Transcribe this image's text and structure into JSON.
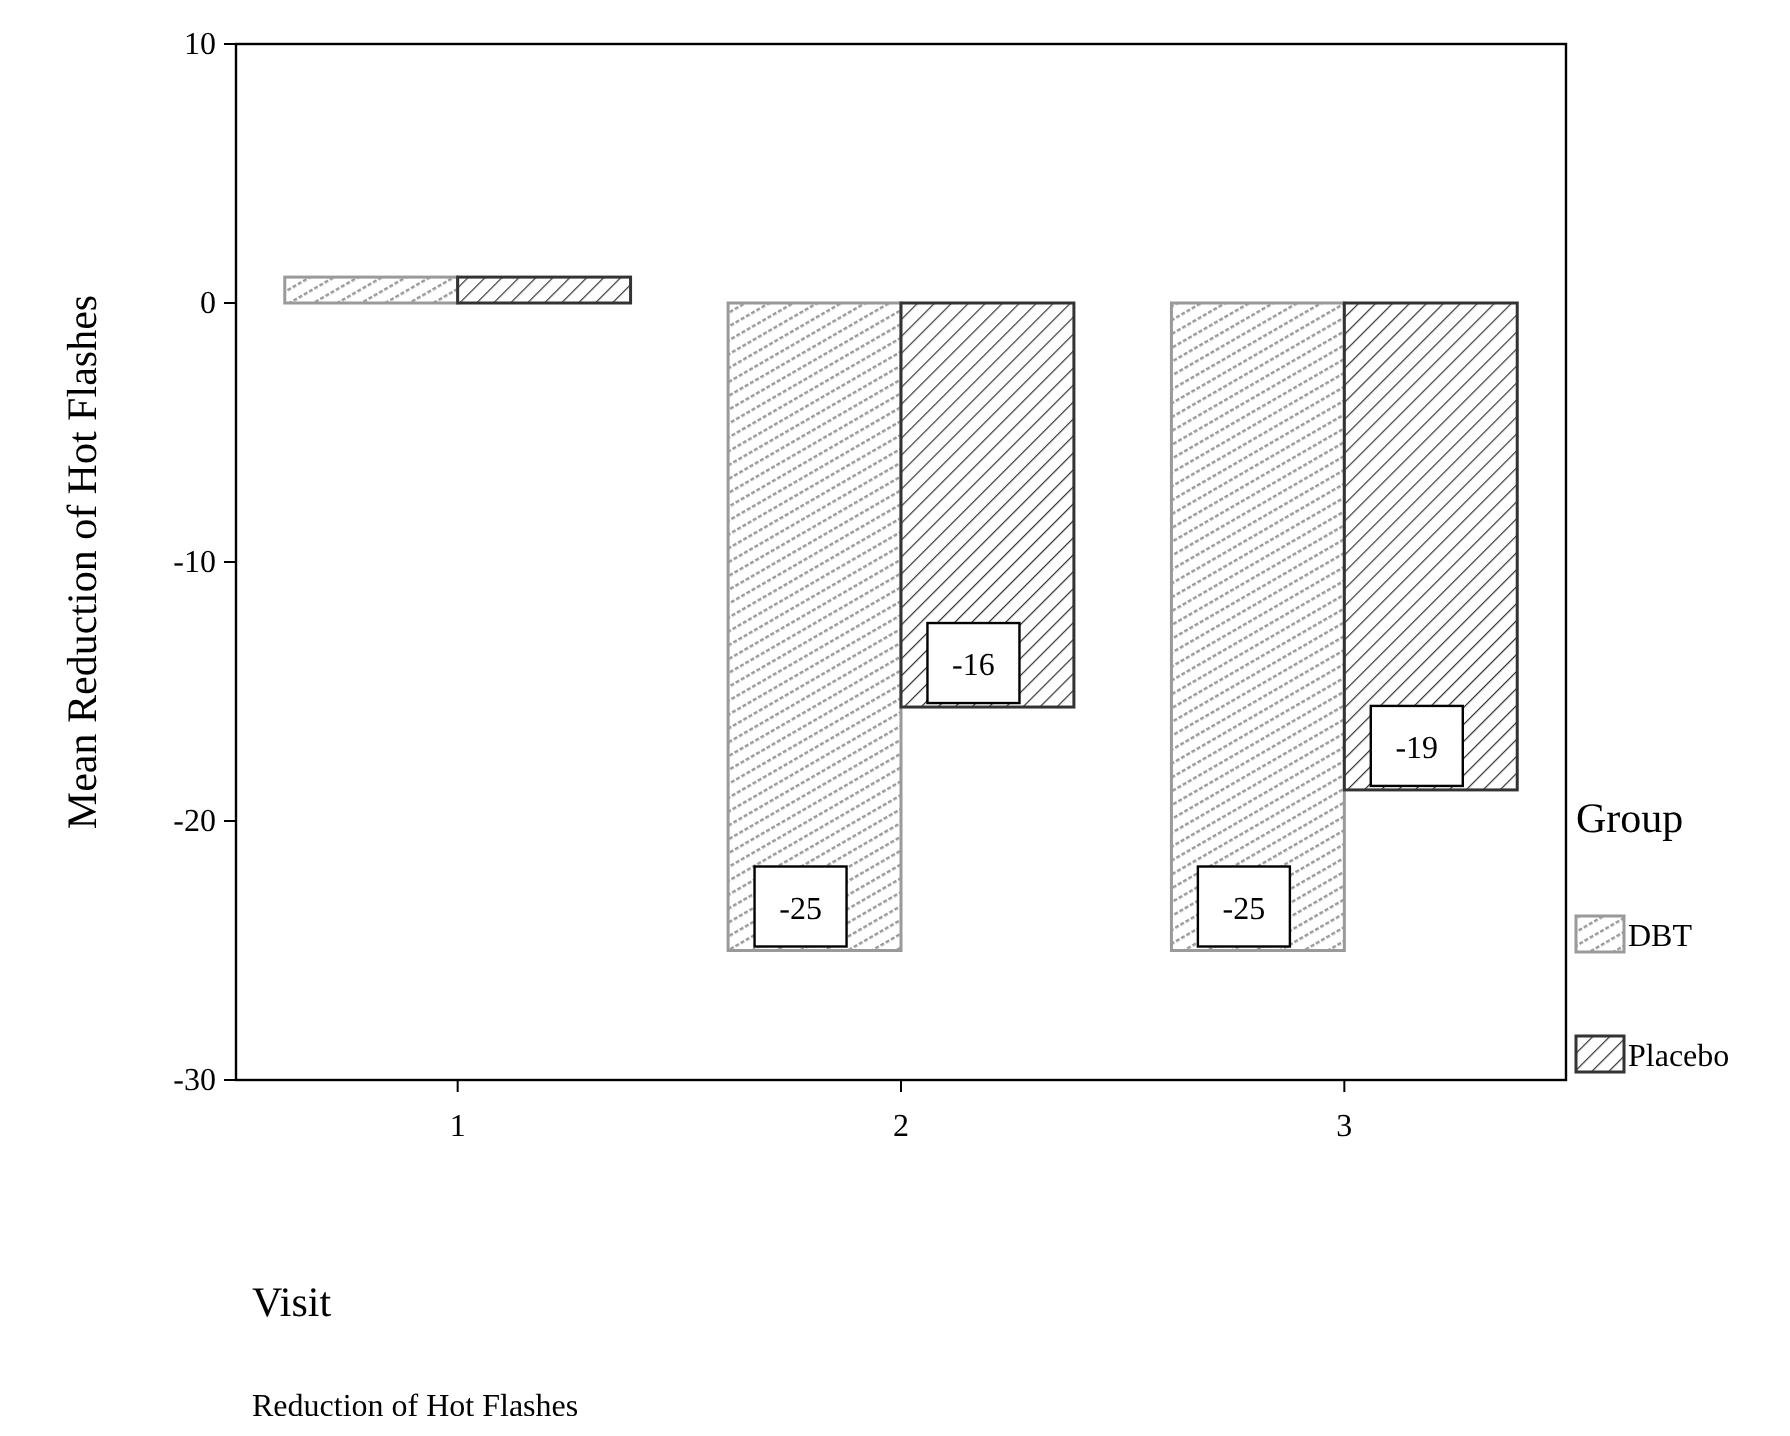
{
  "chart_data": {
    "type": "bar",
    "xlabel": "Visit",
    "ylabel": "Mean Reduction of Hot Flashes",
    "legend_title": "Group",
    "categories": [
      "1",
      "2",
      "3"
    ],
    "series": [
      {
        "name": "DBT",
        "color": "#9a9a9a",
        "values": [
          1,
          -25,
          -25
        ],
        "value_labels": [
          null,
          "-25",
          "-25"
        ]
      },
      {
        "name": "Placebo",
        "color": "#333333",
        "values": [
          1,
          -15.6,
          -18.8
        ],
        "value_labels": [
          null,
          "-16",
          "-19"
        ]
      }
    ],
    "ylim": [
      -30,
      10
    ],
    "yticks": [
      10,
      0,
      -10,
      -20,
      -30
    ],
    "grid": false,
    "legend": "right",
    "annotations": [
      "Reduction of Hot Flashes"
    ]
  }
}
